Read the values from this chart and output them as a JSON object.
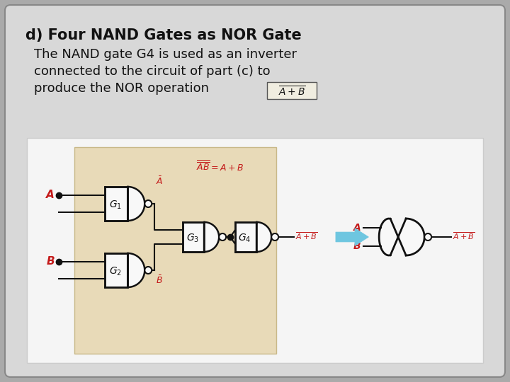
{
  "title_bold": "d) Four NAND Gates as NOR Gate",
  "body_line1": "The NAND gate G4 is used as an inverter",
  "body_line2": "connected to the circuit of part (c) to",
  "body_line3": "produce the NOR operation",
  "bg_outer": "#aaaaaa",
  "bg_card": "#d8d8d8",
  "bg_diagram_panel": "#f5f5f5",
  "bg_nand_region": "#e8dab8",
  "gate_fill": "#f8f8f8",
  "gate_edge": "#111111",
  "red_color": "#c41a1a",
  "arrow_color": "#6ec6e0",
  "body_color": "#111111",
  "title_fontsize": 15,
  "body_fontsize": 13,
  "formula_box_color": "#f0ede0"
}
